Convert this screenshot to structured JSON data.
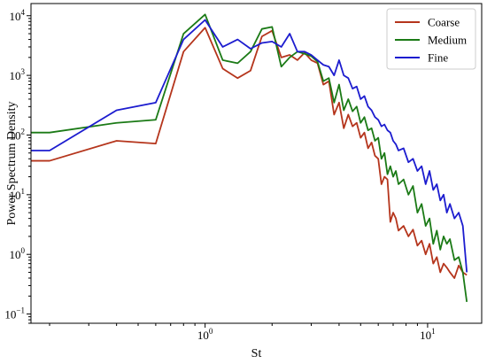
{
  "chart_data": {
    "type": "line",
    "xlabel": "St",
    "ylabel": "Power Spectrum Density",
    "xscale": "log",
    "yscale": "log",
    "xlim": [
      0.165,
      17.5
    ],
    "ylim": [
      0.07,
      16000
    ],
    "x_ticks": [
      {
        "value": 1,
        "base": "10",
        "exp": "0"
      },
      {
        "value": 10,
        "base": "10",
        "exp": "1"
      }
    ],
    "y_ticks": [
      {
        "value": 0.1,
        "base": "10",
        "exp": "−1"
      },
      {
        "value": 1,
        "base": "10",
        "exp": "0"
      },
      {
        "value": 10,
        "base": "10",
        "exp": "1"
      },
      {
        "value": 100,
        "base": "10",
        "exp": "2"
      },
      {
        "value": 1000,
        "base": "10",
        "exp": "3"
      },
      {
        "value": 10000,
        "base": "10",
        "exp": "4"
      }
    ],
    "grid": false,
    "legend_position": "top-right",
    "series": [
      {
        "name": "Coarse",
        "color": "#b5351c",
        "points": [
          [
            0.165,
            37
          ],
          [
            0.2,
            37
          ],
          [
            0.4,
            80
          ],
          [
            0.6,
            72
          ],
          [
            0.8,
            2500
          ],
          [
            1.0,
            6300
          ],
          [
            1.2,
            1300
          ],
          [
            1.4,
            900
          ],
          [
            1.6,
            1200
          ],
          [
            1.8,
            4500
          ],
          [
            2.0,
            5600
          ],
          [
            2.2,
            2000
          ],
          [
            2.4,
            2200
          ],
          [
            2.6,
            1800
          ],
          [
            2.8,
            2400
          ],
          [
            3.0,
            1800
          ],
          [
            3.2,
            1600
          ],
          [
            3.4,
            700
          ],
          [
            3.6,
            800
          ],
          [
            3.8,
            220
          ],
          [
            4.0,
            350
          ],
          [
            4.2,
            130
          ],
          [
            4.4,
            220
          ],
          [
            4.6,
            140
          ],
          [
            4.8,
            160
          ],
          [
            5.0,
            90
          ],
          [
            5.2,
            110
          ],
          [
            5.4,
            60
          ],
          [
            5.6,
            75
          ],
          [
            5.8,
            45
          ],
          [
            6.0,
            40
          ],
          [
            6.2,
            15
          ],
          [
            6.4,
            20
          ],
          [
            6.6,
            18
          ],
          [
            6.8,
            3.5
          ],
          [
            7.0,
            5
          ],
          [
            7.2,
            4
          ],
          [
            7.4,
            2.5
          ],
          [
            7.8,
            3
          ],
          [
            8.2,
            2.0
          ],
          [
            8.6,
            2.6
          ],
          [
            9.0,
            1.4
          ],
          [
            9.4,
            1.7
          ],
          [
            9.8,
            1.0
          ],
          [
            10.2,
            1.5
          ],
          [
            10.6,
            0.7
          ],
          [
            11.0,
            0.9
          ],
          [
            11.4,
            0.5
          ],
          [
            11.8,
            0.7
          ],
          [
            12.2,
            0.6
          ],
          [
            12.6,
            0.5
          ],
          [
            13.2,
            0.4
          ],
          [
            13.8,
            0.65
          ],
          [
            14.4,
            0.5
          ],
          [
            15.0,
            0.45
          ]
        ]
      },
      {
        "name": "Medium",
        "color": "#1b7a16",
        "points": [
          [
            0.165,
            110
          ],
          [
            0.2,
            110
          ],
          [
            0.4,
            160
          ],
          [
            0.6,
            180
          ],
          [
            0.8,
            5000
          ],
          [
            1.0,
            10500
          ],
          [
            1.2,
            1800
          ],
          [
            1.4,
            1600
          ],
          [
            1.6,
            2500
          ],
          [
            1.8,
            6000
          ],
          [
            2.0,
            6500
          ],
          [
            2.2,
            1400
          ],
          [
            2.4,
            2000
          ],
          [
            2.6,
            2500
          ],
          [
            2.8,
            2300
          ],
          [
            3.0,
            2100
          ],
          [
            3.2,
            1700
          ],
          [
            3.4,
            800
          ],
          [
            3.6,
            900
          ],
          [
            3.8,
            350
          ],
          [
            4.0,
            700
          ],
          [
            4.2,
            260
          ],
          [
            4.4,
            400
          ],
          [
            4.6,
            250
          ],
          [
            4.8,
            300
          ],
          [
            5.0,
            160
          ],
          [
            5.2,
            200
          ],
          [
            5.4,
            120
          ],
          [
            5.6,
            130
          ],
          [
            5.8,
            80
          ],
          [
            6.0,
            90
          ],
          [
            6.2,
            40
          ],
          [
            6.4,
            50
          ],
          [
            6.6,
            22
          ],
          [
            6.8,
            30
          ],
          [
            7.0,
            20
          ],
          [
            7.2,
            25
          ],
          [
            7.4,
            15
          ],
          [
            7.8,
            18
          ],
          [
            8.2,
            10
          ],
          [
            8.6,
            14
          ],
          [
            9.0,
            5
          ],
          [
            9.4,
            7
          ],
          [
            9.8,
            3
          ],
          [
            10.2,
            4
          ],
          [
            10.6,
            1.5
          ],
          [
            11.0,
            2.5
          ],
          [
            11.4,
            1.2
          ],
          [
            11.8,
            2
          ],
          [
            12.2,
            1.5
          ],
          [
            12.6,
            1.8
          ],
          [
            13.2,
            0.8
          ],
          [
            13.8,
            0.9
          ],
          [
            14.4,
            0.5
          ],
          [
            15.0,
            0.16
          ]
        ]
      },
      {
        "name": "Fine",
        "color": "#1c1ccf",
        "points": [
          [
            0.165,
            55
          ],
          [
            0.2,
            55
          ],
          [
            0.4,
            260
          ],
          [
            0.6,
            350
          ],
          [
            0.8,
            4000
          ],
          [
            1.0,
            8500
          ],
          [
            1.2,
            3000
          ],
          [
            1.4,
            4000
          ],
          [
            1.6,
            2800
          ],
          [
            1.8,
            3500
          ],
          [
            2.0,
            3700
          ],
          [
            2.2,
            3000
          ],
          [
            2.4,
            5000
          ],
          [
            2.6,
            2500
          ],
          [
            2.8,
            2500
          ],
          [
            3.0,
            2200
          ],
          [
            3.2,
            1800
          ],
          [
            3.4,
            1500
          ],
          [
            3.6,
            1400
          ],
          [
            3.8,
            1000
          ],
          [
            4.0,
            1800
          ],
          [
            4.2,
            1000
          ],
          [
            4.4,
            900
          ],
          [
            4.6,
            600
          ],
          [
            4.8,
            650
          ],
          [
            5.0,
            400
          ],
          [
            5.2,
            450
          ],
          [
            5.4,
            300
          ],
          [
            5.6,
            260
          ],
          [
            5.8,
            200
          ],
          [
            6.0,
            180
          ],
          [
            6.2,
            140
          ],
          [
            6.4,
            150
          ],
          [
            6.6,
            120
          ],
          [
            6.8,
            110
          ],
          [
            7.0,
            80
          ],
          [
            7.2,
            70
          ],
          [
            7.4,
            55
          ],
          [
            7.8,
            60
          ],
          [
            8.2,
            35
          ],
          [
            8.6,
            40
          ],
          [
            9.0,
            25
          ],
          [
            9.4,
            30
          ],
          [
            9.8,
            15
          ],
          [
            10.2,
            25
          ],
          [
            10.6,
            12
          ],
          [
            11.0,
            15
          ],
          [
            11.4,
            8
          ],
          [
            11.8,
            10
          ],
          [
            12.2,
            5
          ],
          [
            12.6,
            7
          ],
          [
            13.2,
            4
          ],
          [
            13.8,
            5
          ],
          [
            14.4,
            3
          ],
          [
            15.0,
            0.5
          ]
        ]
      }
    ]
  }
}
